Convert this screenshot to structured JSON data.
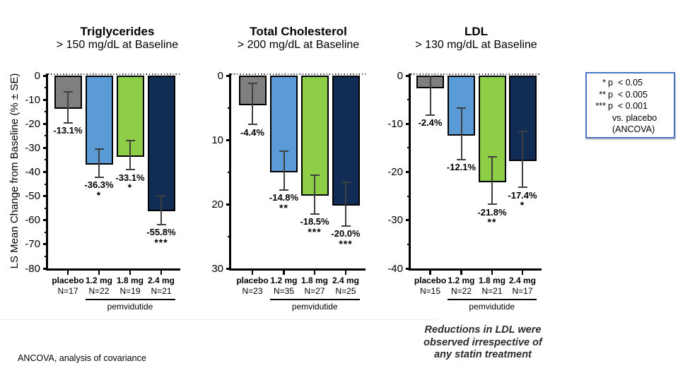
{
  "y_axis_title": "LS Mean Change from Baseline (% ± SE)",
  "footnote": "ANCOVA, analysis  of covariance",
  "ldl_note_lines": [
    "Reductions in LDL were",
    "observed irrespective of",
    "any statin treatment"
  ],
  "legend": {
    "rows": [
      {
        "stars": "*",
        "text": "p  < 0.05"
      },
      {
        "stars": "**",
        "text": "p  < 0.005"
      },
      {
        "stars": "***",
        "text": "p  < 0.001"
      }
    ],
    "footer": [
      "vs. placebo",
      "(ANCOVA)"
    ]
  },
  "colors": {
    "bars": [
      "#7f7f7f",
      "#5b9bd5",
      "#8dce46",
      "#112d55"
    ],
    "bar_border": "#000000",
    "error_bar": "#3f3f3f",
    "legend_border": "#4a74c0"
  },
  "chart_data": [
    {
      "type": "bar",
      "title": "Triglycerides",
      "subtitle": "> 150 mg/dL at Baseline",
      "ylabel": "LS Mean Change from Baseline (% ± SE)",
      "axis_tick_labels": [
        "0",
        "-10",
        "-20",
        "-30",
        "-40",
        "-50",
        "-60",
        "-70",
        "-80"
      ],
      "axis_span": 80,
      "categories": [
        "placebo",
        "1.2 mg",
        "1.8 mg",
        "2.4 mg"
      ],
      "n_labels": [
        "N=17",
        "N=22",
        "N=19",
        "N=21"
      ],
      "values": [
        -13.1,
        -36.3,
        -33.1,
        -55.8
      ],
      "value_labels": [
        "-13.1%",
        "-36.3%",
        "-33.1%",
        "-55.8%"
      ],
      "significance": [
        "",
        "*",
        "*",
        "***"
      ],
      "se": [
        6.5,
        5.8,
        6.0,
        5.9
      ],
      "group_label": "pemvidutide"
    },
    {
      "type": "bar",
      "title": "Total Cholesterol",
      "subtitle": "> 200 mg/dL at Baseline",
      "ylabel": "LS Mean Change from Baseline (% ± SE)",
      "axis_tick_labels": [
        "0",
        "10",
        "20",
        "30"
      ],
      "axis_span": 30,
      "categories": [
        "placebo",
        "1.2 mg",
        "1.8 mg",
        "2.4 mg"
      ],
      "n_labels": [
        "N=23",
        "N=35",
        "N=27",
        "N=25"
      ],
      "values": [
        -4.4,
        -14.8,
        -18.5,
        -20.0
      ],
      "value_labels": [
        "-4.4%",
        "-14.8%",
        "-18.5%",
        "-20.0%"
      ],
      "significance": [
        "",
        "**",
        "***",
        "***"
      ],
      "se": [
        3.2,
        3.0,
        3.0,
        3.4
      ],
      "group_label": "pemvidutide"
    },
    {
      "type": "bar",
      "title": "LDL",
      "subtitle": "> 130 mg/dL at Baseline",
      "ylabel": "LS Mean Change from Baseline (% ± SE)",
      "axis_tick_labels": [
        "0",
        "-10",
        "-20",
        "-30",
        "-40"
      ],
      "axis_span": 40,
      "categories": [
        "placebo",
        "1.2 mg",
        "1.8 mg",
        "2.4 mg"
      ],
      "n_labels": [
        "N=15",
        "N=22",
        "N=21",
        "N=17"
      ],
      "values": [
        -2.4,
        -12.1,
        -21.8,
        -17.4
      ],
      "value_labels": [
        "-2.4%",
        "-12.1%",
        "-21.8%",
        "-17.4%"
      ],
      "significance": [
        "",
        "",
        "**",
        "*"
      ],
      "se": [
        5.8,
        5.3,
        4.9,
        5.8
      ],
      "group_label": "pemvidutide"
    }
  ]
}
